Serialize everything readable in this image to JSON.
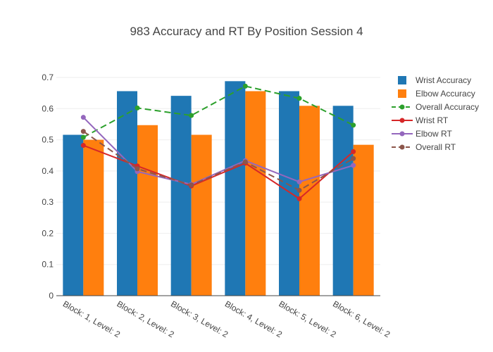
{
  "chart_data": {
    "type": "bar",
    "title": "983 Accuracy and RT By Position Session 4",
    "xlabel": "",
    "ylabel": "",
    "ylim": [
      0,
      0.7
    ],
    "yticks": [
      "0",
      "0.1",
      "0.2",
      "0.3",
      "0.4",
      "0.5",
      "0.6",
      "0.7"
    ],
    "categories": [
      "Block: 1, Level: 2",
      "Block: 2, Level: 2",
      "Block: 3, Level: 2",
      "Block: 4, Level: 2",
      "Block: 5, Level: 2",
      "Block: 6, Level: 2"
    ],
    "grid": true,
    "legend_position": "right",
    "bars": [
      {
        "name": "Wrist Accuracy",
        "color": "#1f77b4",
        "values": [
          0.516,
          0.656,
          0.641,
          0.688,
          0.656,
          0.609
        ]
      },
      {
        "name": "Elbow Accuracy",
        "color": "#ff7f0e",
        "values": [
          0.5,
          0.547,
          0.516,
          0.656,
          0.609,
          0.484
        ]
      }
    ],
    "lines": [
      {
        "name": "Overall Accuracy",
        "color": "#2ca02c",
        "dash": "dashed",
        "values": [
          0.508,
          0.602,
          0.578,
          0.672,
          0.633,
          0.547
        ]
      },
      {
        "name": "Wrist RT",
        "color": "#d62728",
        "dash": "solid",
        "values": [
          0.482,
          0.416,
          0.352,
          0.425,
          0.311,
          0.462
        ]
      },
      {
        "name": "Elbow RT",
        "color": "#9467bd",
        "dash": "solid",
        "values": [
          0.572,
          0.398,
          0.357,
          0.433,
          0.365,
          0.418
        ]
      },
      {
        "name": "Overall RT",
        "color": "#8c564b",
        "dash": "dashed",
        "values": [
          0.527,
          0.407,
          0.355,
          0.429,
          0.338,
          0.44
        ]
      }
    ]
  }
}
